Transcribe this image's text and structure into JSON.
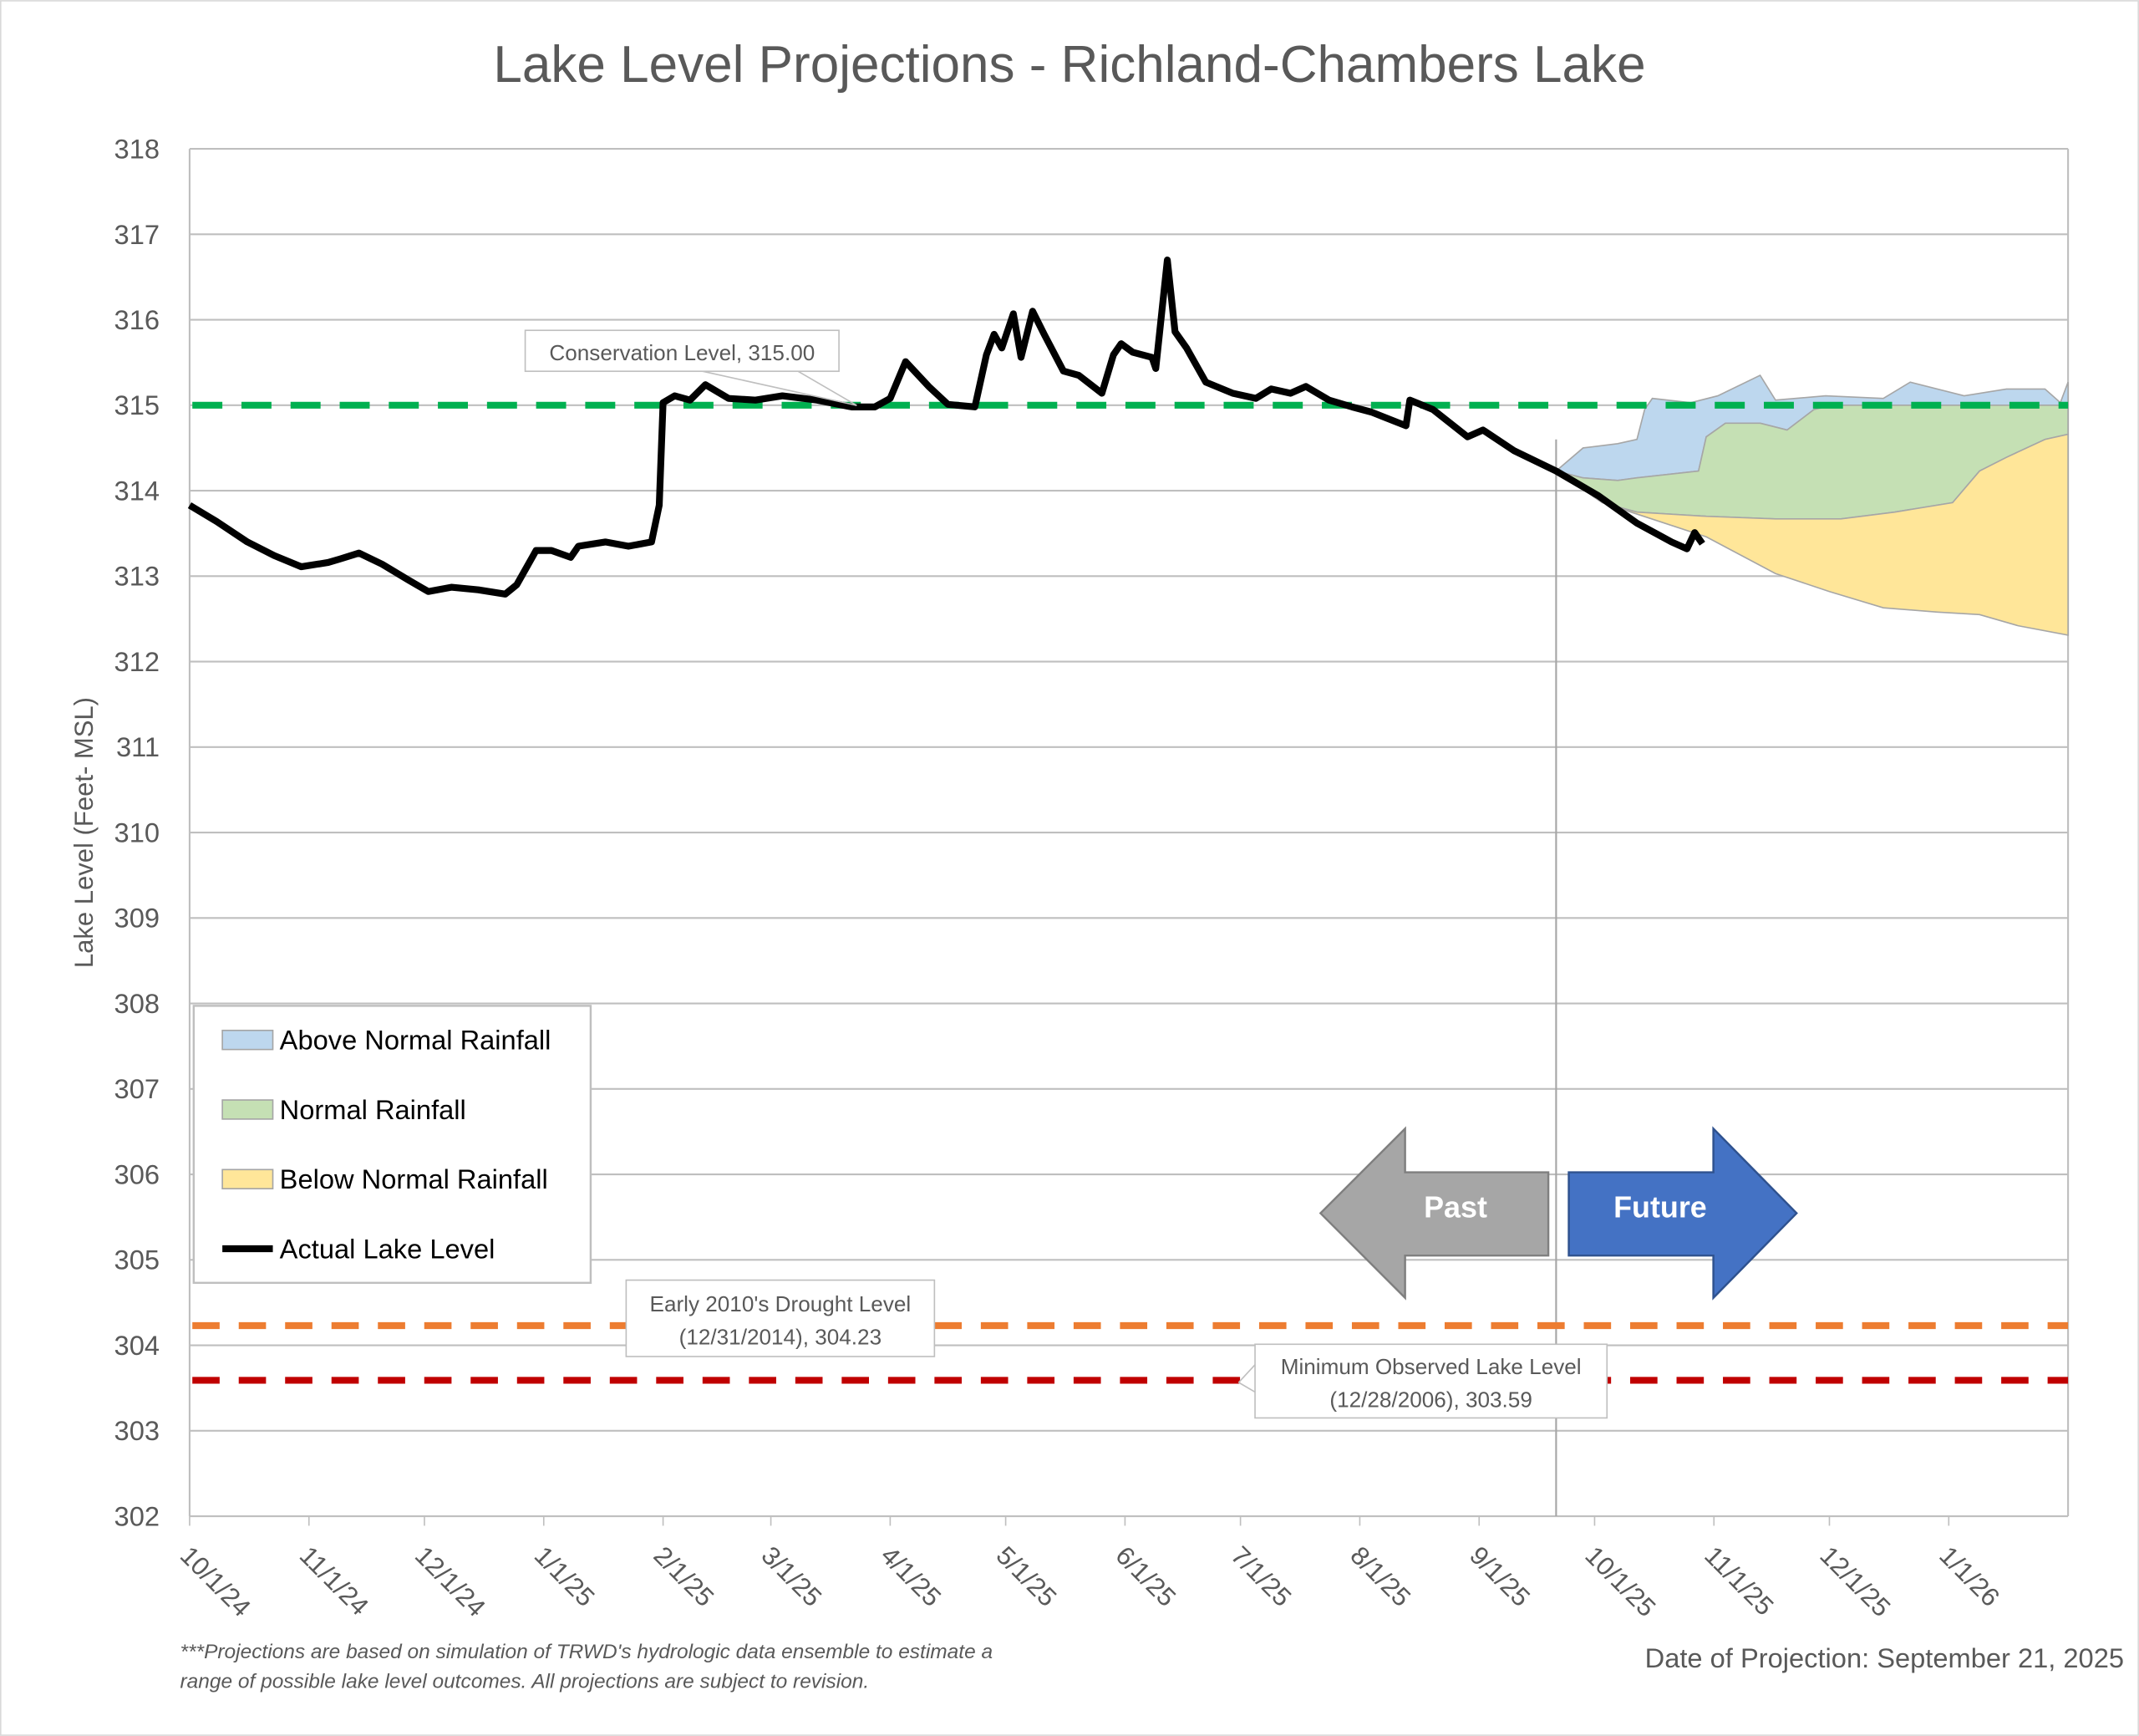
{
  "chart_data": {
    "type": "area",
    "title": "Lake Level Projections - Richland-Chambers Lake",
    "ylabel": "Lake Level (Feet- MSL)",
    "xlabel": "",
    "ylim": [
      302,
      318
    ],
    "yticks": [
      302,
      303,
      304,
      305,
      306,
      307,
      308,
      309,
      310,
      311,
      312,
      313,
      314,
      315,
      316,
      317,
      318
    ],
    "x_start": "10/1/24",
    "x_range_days": [
      0,
      488
    ],
    "xticks": [
      {
        "label": "10/1/24",
        "day": 0
      },
      {
        "label": "11/1/24",
        "day": 31
      },
      {
        "label": "12/1/24",
        "day": 61
      },
      {
        "label": "1/1/25",
        "day": 92
      },
      {
        "label": "2/1/25",
        "day": 123
      },
      {
        "label": "3/1/25",
        "day": 151
      },
      {
        "label": "4/1/25",
        "day": 182
      },
      {
        "label": "5/1/25",
        "day": 212
      },
      {
        "label": "6/1/25",
        "day": 243
      },
      {
        "label": "7/1/25",
        "day": 273
      },
      {
        "label": "8/1/25",
        "day": 304
      },
      {
        "label": "9/1/25",
        "day": 335
      },
      {
        "label": "10/1/25",
        "day": 365
      },
      {
        "label": "11/1/25",
        "day": 396
      },
      {
        "label": "12/1/25",
        "day": 426
      },
      {
        "label": "1/1/26",
        "day": 457
      }
    ],
    "grid": true,
    "legend_placement": "bottom-left",
    "legend": [
      {
        "label": "Above Normal Rainfall",
        "color": "#BDD7EE"
      },
      {
        "label": "Normal Rainfall",
        "color": "#C5E0B4"
      },
      {
        "label": "Below Normal Rainfall",
        "color": "#FFE699"
      },
      {
        "label": "Actual Lake Level",
        "color": "#000000"
      }
    ],
    "actual_lake_level": {
      "days": [
        0,
        7,
        15,
        22,
        29,
        36,
        39,
        44,
        50,
        57,
        62,
        68,
        75,
        82,
        85,
        90,
        94,
        99,
        101,
        108,
        114,
        120,
        122,
        123,
        126,
        130,
        134,
        140,
        147,
        154,
        163,
        172,
        178,
        182,
        186,
        192,
        197,
        204,
        207,
        209,
        211,
        214,
        216,
        219,
        222,
        227,
        231,
        237,
        240,
        242,
        245,
        250,
        251,
        254,
        256,
        259,
        264,
        271,
        277,
        281,
        286,
        290,
        296,
        302,
        307,
        316,
        317,
        323,
        332,
        336,
        344,
        355,
        366,
        376,
        385,
        389,
        391,
        393
      ],
      "values": [
        313.83,
        313.64,
        313.4,
        313.24,
        313.11,
        313.16,
        313.2,
        313.27,
        313.14,
        312.95,
        312.82,
        312.87,
        312.84,
        312.79,
        312.9,
        313.3,
        313.3,
        313.22,
        313.35,
        313.4,
        313.35,
        313.4,
        313.83,
        315.03,
        315.11,
        315.06,
        315.24,
        315.08,
        315.06,
        315.11,
        315.06,
        314.98,
        314.98,
        315.08,
        315.51,
        315.22,
        315.01,
        314.98,
        315.59,
        315.83,
        315.67,
        316.07,
        315.56,
        316.1,
        315.83,
        315.4,
        315.35,
        315.14,
        315.59,
        315.72,
        315.62,
        315.56,
        315.43,
        316.7,
        315.86,
        315.67,
        315.27,
        315.14,
        315.08,
        315.19,
        315.14,
        315.22,
        315.06,
        314.98,
        314.92,
        314.76,
        315.06,
        314.95,
        314.63,
        314.71,
        314.47,
        314.23,
        313.94,
        313.62,
        313.4,
        313.32,
        313.51,
        313.38
      ]
    },
    "projection_bands": {
      "above_normal_top": {
        "days": [
          355,
          362,
          371,
          376,
          378,
          380,
          390,
          397,
          408,
          412,
          425,
          440,
          447,
          461,
          472,
          482,
          486,
          488
        ],
        "values": [
          314.23,
          314.5,
          314.55,
          314.6,
          314.95,
          315.08,
          315.03,
          315.11,
          315.35,
          315.06,
          315.11,
          315.08,
          315.27,
          315.11,
          315.19,
          315.19,
          315.03,
          315.27
        ]
      },
      "normal_top": {
        "days": [
          355,
          362,
          371,
          376,
          392,
          394,
          399,
          408,
          415,
          422,
          427,
          488
        ],
        "values": [
          314.23,
          314.15,
          314.12,
          314.15,
          314.23,
          314.63,
          314.79,
          314.79,
          314.71,
          314.95,
          315.0,
          315.0
        ]
      },
      "below_normal_top": {
        "days": [
          355,
          367,
          376,
          394,
          412,
          429,
          443,
          458,
          465,
          472,
          482,
          488
        ],
        "values": [
          314.23,
          313.86,
          313.75,
          313.7,
          313.67,
          313.67,
          313.75,
          313.86,
          314.23,
          314.39,
          314.6,
          314.66
        ]
      },
      "below_normal_bottom": {
        "days": [
          355,
          369,
          394,
          412,
          426,
          440,
          454,
          465,
          475,
          488
        ],
        "values": [
          314.23,
          313.83,
          313.46,
          313.03,
          312.82,
          312.63,
          312.58,
          312.55,
          312.42,
          312.31
        ]
      }
    },
    "reference_lines": [
      {
        "name": "Conservation Level",
        "value": 315.0,
        "color": "#00B050",
        "label": "Conservation Level, 315.00"
      },
      {
        "name": "Early 2010's Drought Level",
        "value": 304.23,
        "color": "#ED7D31",
        "label_line1": "Early 2010's Drought Level",
        "label_line2": "(12/31/2014), 304.23"
      },
      {
        "name": "Minimum Observed Lake Level",
        "value": 303.59,
        "color": "#C00000",
        "label_line1": "Minimum Observed Lake Level",
        "label_line2": "(12/28/2006), 303.59"
      }
    ],
    "projection_date_day": 355,
    "arrows": {
      "past": "Past",
      "future": "Future",
      "past_color": "#A6A6A6",
      "future_color": "#4472C4"
    },
    "footnote_line1": "***Projections are based on simulation of TRWD's hydrologic data ensemble to estimate a",
    "footnote_line2": "range of possible lake level outcomes.  All projections are subject to revision.",
    "projection_date_text": "Date of Projection: September 21, 2025"
  }
}
